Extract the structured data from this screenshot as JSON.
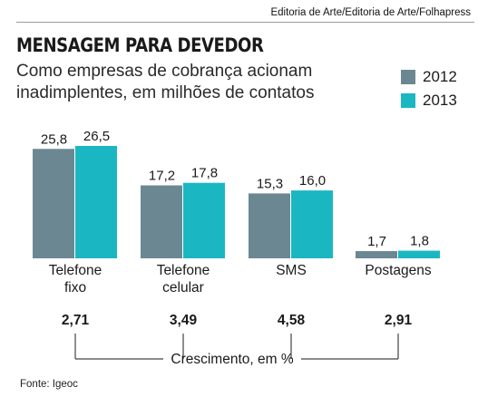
{
  "credit": "Editoria de Arte/Editoria de Arte/Folhapress",
  "source": "Fonte: Igeoc",
  "legend_colors": [
    "#6b8892",
    "#1ab7c2"
  ],
  "chart_data": {
    "type": "bar",
    "title": "MENSAGEM PARA DEVEDOR",
    "subtitle": "Como empresas de cobrança acionam inadimplentes, em milhões de contatos",
    "categories": [
      [
        "Telefone",
        "fixo"
      ],
      [
        "Telefone",
        "celular"
      ],
      [
        "SMS"
      ],
      [
        "Postagens"
      ]
    ],
    "series": [
      {
        "name": "2012",
        "color": "#6b8892",
        "values": [
          25.8,
          17.2,
          15.3,
          1.7
        ],
        "labels": [
          "25,8",
          "17,2",
          "15,3",
          "1,7"
        ]
      },
      {
        "name": "2013",
        "color": "#1ab7c2",
        "values": [
          26.5,
          17.8,
          16.0,
          1.8
        ],
        "labels": [
          "26,5",
          "17,8",
          "16,0",
          "1,8"
        ]
      }
    ],
    "growth": {
      "label": "Crescimento, em %",
      "values": [
        "2,71",
        "3,49",
        "4,58",
        "2,91"
      ]
    },
    "ylim": [
      0,
      26.5
    ],
    "grid": false,
    "legend_position": "top-right"
  }
}
